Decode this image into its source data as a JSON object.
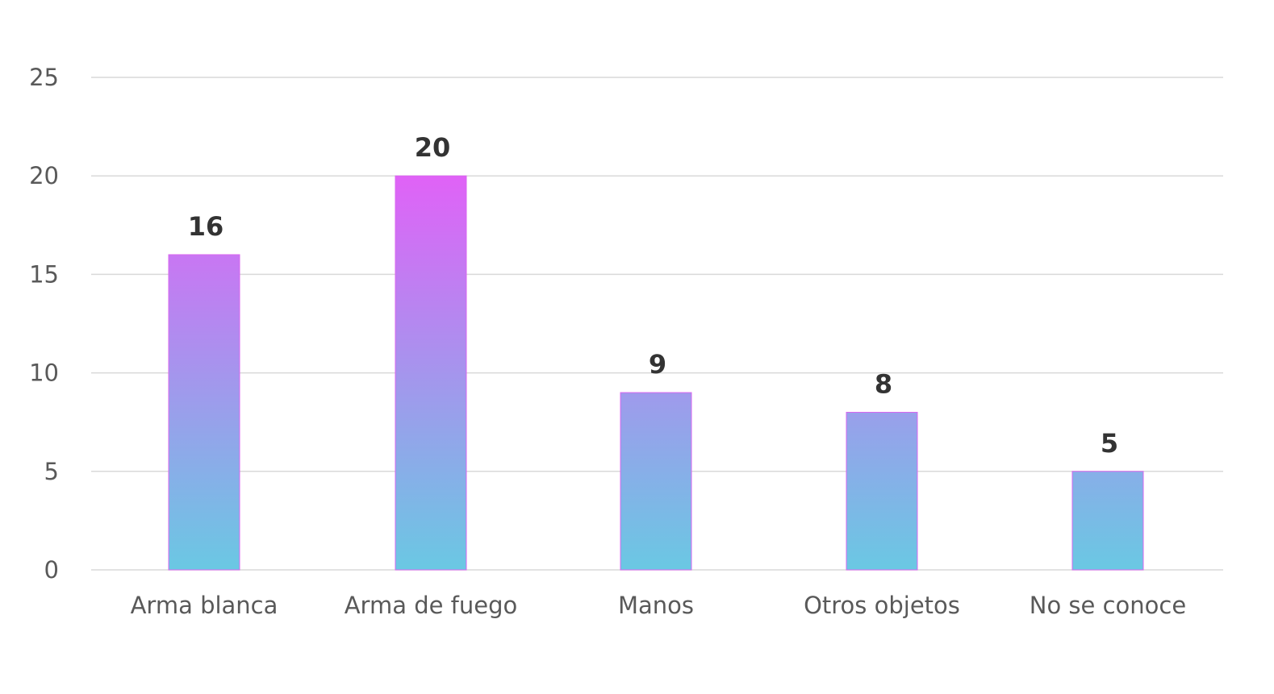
{
  "chart_data": {
    "type": "bar",
    "title": "",
    "xlabel": "",
    "ylabel": "",
    "categories": [
      "Arma blanca",
      "Arma de fuego",
      "Manos",
      "Otros objetos",
      "No se conoce"
    ],
    "values": [
      16,
      20,
      9,
      8,
      5
    ],
    "data_labels": [
      "16",
      "20",
      "9",
      "8",
      "5"
    ],
    "ylim": [
      0,
      25
    ],
    "yticks": [
      0,
      5,
      10,
      15,
      20,
      25
    ],
    "ytick_labels": [
      "0",
      "5",
      "10",
      "15",
      "20",
      "25"
    ],
    "grid": true,
    "legend": "none",
    "colors": {
      "bar_gradient_top": "#e062f7",
      "bar_gradient_bottom": "#6ac8e3",
      "bar_border": "#d966f0",
      "gridline": "#d9d9d9",
      "tick_text": "#595959",
      "data_label_text": "#333333"
    }
  }
}
